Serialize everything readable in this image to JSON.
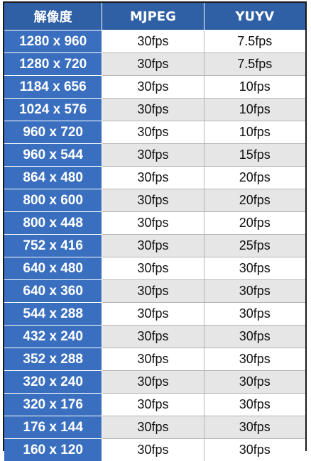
{
  "table": {
    "headers": {
      "resolution": "解像度",
      "mjpeg": "MJPEG",
      "yuyv": "YUYV"
    },
    "rows": [
      {
        "resolution": "1280 x 960",
        "mjpeg": "30fps",
        "yuyv": "7.5fps"
      },
      {
        "resolution": "1280 x 720",
        "mjpeg": "30fps",
        "yuyv": "7.5fps"
      },
      {
        "resolution": "1184 x 656",
        "mjpeg": "30fps",
        "yuyv": "10fps"
      },
      {
        "resolution": "1024 x 576",
        "mjpeg": "30fps",
        "yuyv": "10fps"
      },
      {
        "resolution": "960 x 720",
        "mjpeg": "30fps",
        "yuyv": "10fps"
      },
      {
        "resolution": "960 x 544",
        "mjpeg": "30fps",
        "yuyv": "15fps"
      },
      {
        "resolution": "864 x 480",
        "mjpeg": "30fps",
        "yuyv": "20fps"
      },
      {
        "resolution": "800 x 600",
        "mjpeg": "30fps",
        "yuyv": "20fps"
      },
      {
        "resolution": "800 x 448",
        "mjpeg": "30fps",
        "yuyv": "20fps"
      },
      {
        "resolution": "752 x 416",
        "mjpeg": "30fps",
        "yuyv": "25fps"
      },
      {
        "resolution": "640 x 480",
        "mjpeg": "30fps",
        "yuyv": "30fps"
      },
      {
        "resolution": "640 x 360",
        "mjpeg": "30fps",
        "yuyv": "30fps"
      },
      {
        "resolution": "544 x 288",
        "mjpeg": "30fps",
        "yuyv": "30fps"
      },
      {
        "resolution": "432 x 240",
        "mjpeg": "30fps",
        "yuyv": "30fps"
      },
      {
        "resolution": "352 x 288",
        "mjpeg": "30fps",
        "yuyv": "30fps"
      },
      {
        "resolution": "320 x 240",
        "mjpeg": "30fps",
        "yuyv": "30fps"
      },
      {
        "resolution": "320 x 176",
        "mjpeg": "30fps",
        "yuyv": "30fps"
      },
      {
        "resolution": "176 x 144",
        "mjpeg": "30fps",
        "yuyv": "30fps"
      },
      {
        "resolution": "160 x 120",
        "mjpeg": "30fps",
        "yuyv": "30fps"
      }
    ]
  },
  "colors": {
    "header_background": "#2f5fa5",
    "resolution_column_background": "#3a6fc0",
    "alternate_row_background": "#e6e6e6"
  }
}
